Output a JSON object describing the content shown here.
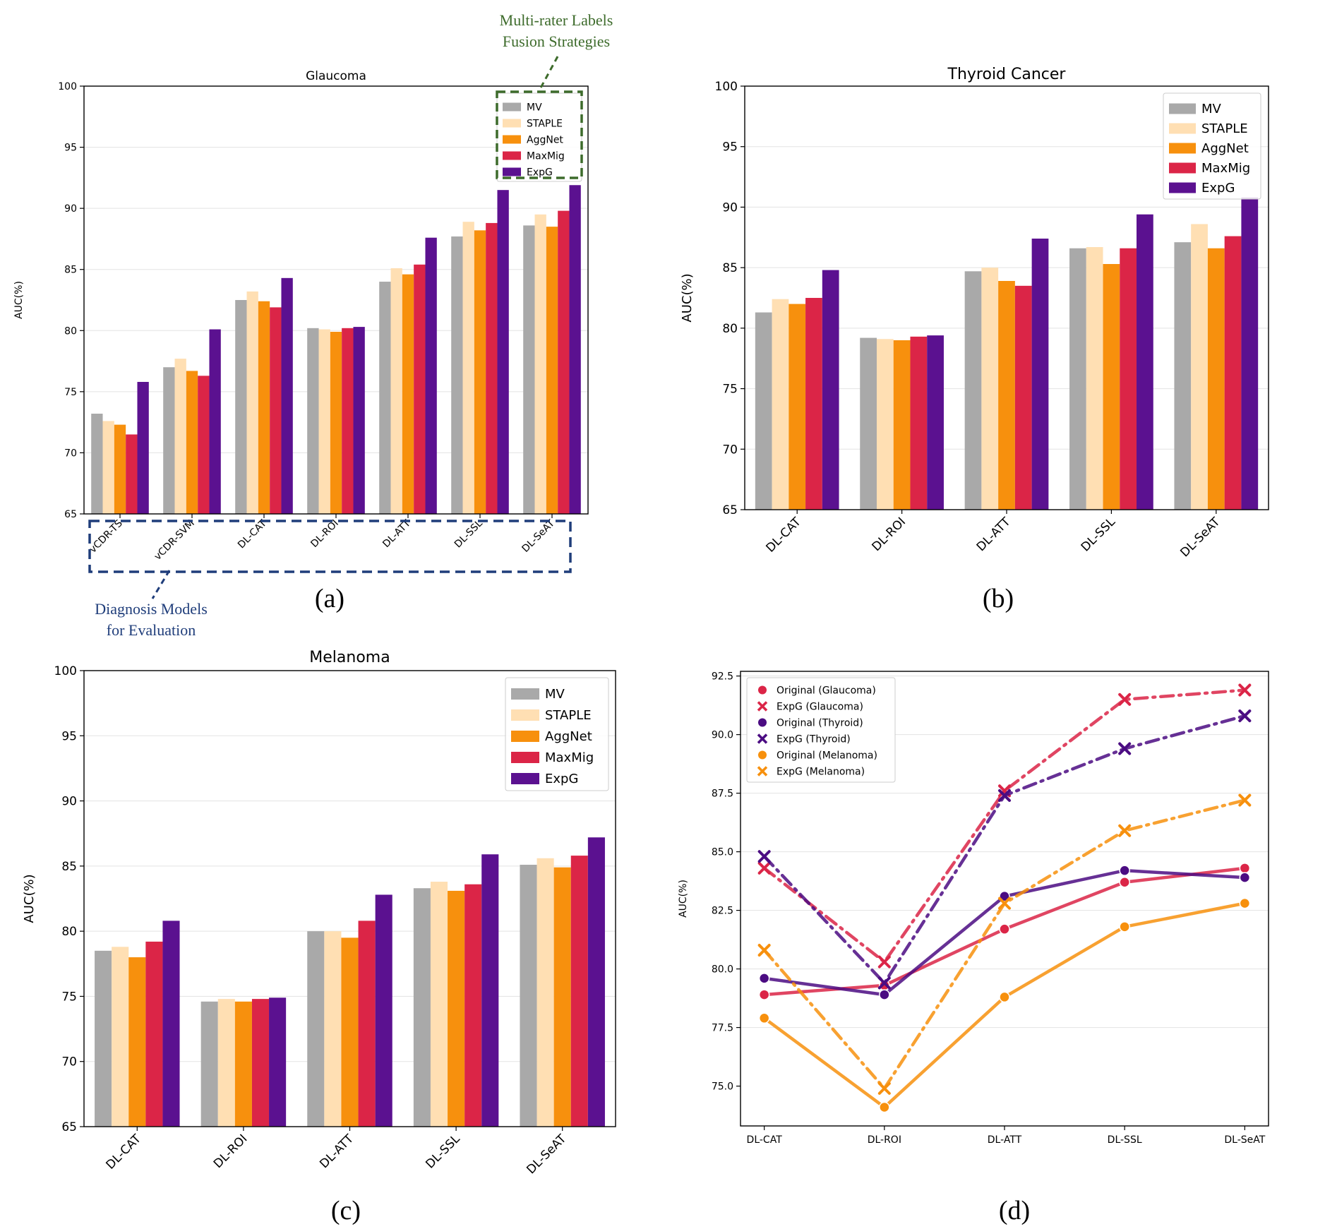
{
  "colors": {
    "MV": "#a9a9a9",
    "STAPLE": "#ffdfb3",
    "AggNet": "#f7900d",
    "MaxMig": "#db2547",
    "ExpG": "#5b1190",
    "annot_green": "#3d6b2b",
    "annot_blue": "#1f3d7a",
    "glaucoma_line": "#db2547",
    "thyroid_line": "#4b0c82",
    "melanoma_line": "#f7900d"
  },
  "panel_labels": {
    "a": "(a)",
    "b": "(b)",
    "c": "(c)",
    "d": "(d)"
  },
  "annotations": {
    "fusion_line1": "Multi-rater Labels",
    "fusion_line2": "Fusion Strategies",
    "models_line1": "Diagnosis Models",
    "models_line2": "for Evaluation"
  },
  "chart_data": [
    {
      "type": "bar",
      "title": "Glaucoma",
      "ylabel": "AUC(%)",
      "ylim": [
        65,
        100
      ],
      "yticks": [
        "65",
        "70",
        "75",
        "80",
        "85",
        "90",
        "95",
        "100"
      ],
      "categories": [
        "vCDR-TS",
        "vCDR-SVM",
        "DL-CAT",
        "DL-ROI",
        "DL-ATT",
        "DL-SSL",
        "DL-SeAT"
      ],
      "legend_position": "top-right",
      "series": [
        {
          "name": "MV",
          "values": [
            73.2,
            77.0,
            82.5,
            80.2,
            84.0,
            87.7,
            88.6
          ]
        },
        {
          "name": "STAPLE",
          "values": [
            72.6,
            77.7,
            83.2,
            80.1,
            85.1,
            88.9,
            89.5
          ]
        },
        {
          "name": "AggNet",
          "values": [
            72.3,
            76.7,
            82.4,
            79.9,
            84.6,
            88.2,
            88.5
          ]
        },
        {
          "name": "MaxMig",
          "values": [
            71.5,
            76.3,
            81.9,
            80.2,
            85.4,
            88.8,
            89.8
          ]
        },
        {
          "name": "ExpG",
          "values": [
            75.8,
            80.1,
            84.3,
            80.3,
            87.6,
            91.5,
            91.9
          ]
        }
      ]
    },
    {
      "type": "bar",
      "title": "Thyroid Cancer",
      "ylabel": "AUC(%)",
      "ylim": [
        65,
        100
      ],
      "yticks": [
        "65",
        "70",
        "75",
        "80",
        "85",
        "90",
        "95",
        "100"
      ],
      "categories": [
        "DL-CAT",
        "DL-ROI",
        "DL-ATT",
        "DL-SSL",
        "DL-SeAT"
      ],
      "legend_position": "top-right",
      "series": [
        {
          "name": "MV",
          "values": [
            81.3,
            79.2,
            84.7,
            86.6,
            87.1
          ]
        },
        {
          "name": "STAPLE",
          "values": [
            82.4,
            79.1,
            85.0,
            86.7,
            88.6
          ]
        },
        {
          "name": "AggNet",
          "values": [
            82.0,
            79.0,
            83.9,
            85.3,
            86.6
          ]
        },
        {
          "name": "MaxMig",
          "values": [
            82.5,
            79.3,
            83.5,
            86.6,
            87.6
          ]
        },
        {
          "name": "ExpG",
          "values": [
            84.8,
            79.4,
            87.4,
            89.4,
            90.8
          ]
        }
      ]
    },
    {
      "type": "bar",
      "title": "Melanoma",
      "ylabel": "AUC(%)",
      "ylim": [
        65,
        100
      ],
      "yticks": [
        "65",
        "70",
        "75",
        "80",
        "85",
        "90",
        "95",
        "100"
      ],
      "categories": [
        "DL-CAT",
        "DL-ROI",
        "DL-ATT",
        "DL-SSL",
        "DL-SeAT"
      ],
      "legend_position": "top-right",
      "series": [
        {
          "name": "MV",
          "values": [
            78.5,
            74.6,
            80.0,
            83.3,
            85.1
          ]
        },
        {
          "name": "STAPLE",
          "values": [
            78.8,
            74.8,
            80.0,
            83.8,
            85.6
          ]
        },
        {
          "name": "AggNet",
          "values": [
            78.0,
            74.6,
            79.5,
            83.1,
            84.9
          ]
        },
        {
          "name": "MaxMig",
          "values": [
            79.2,
            74.8,
            80.8,
            83.6,
            85.8
          ]
        },
        {
          "name": "ExpG",
          "values": [
            80.8,
            74.9,
            82.8,
            85.9,
            87.2
          ]
        }
      ]
    },
    {
      "type": "line",
      "title": "",
      "ylabel": "AUC(%)",
      "ylim": [
        73.3,
        92.7
      ],
      "yticks": [
        "75.0",
        "77.5",
        "80.0",
        "82.5",
        "85.0",
        "87.5",
        "90.0",
        "92.5"
      ],
      "categories": [
        "DL-CAT",
        "DL-ROI",
        "DL-ATT",
        "DL-SSL",
        "DL-SeAT"
      ],
      "legend_position": "top-left",
      "series": [
        {
          "name": "Original (Glaucoma)",
          "values": [
            78.9,
            79.3,
            81.7,
            83.7,
            84.3
          ],
          "style": "solid",
          "marker": "circle",
          "color_key": "glaucoma_line"
        },
        {
          "name": "ExpG (Glaucoma)",
          "values": [
            84.3,
            80.3,
            87.6,
            91.5,
            91.9
          ],
          "style": "dashdot",
          "marker": "x",
          "color_key": "glaucoma_line"
        },
        {
          "name": "Original (Thyroid)",
          "values": [
            79.6,
            78.9,
            83.1,
            84.2,
            83.9
          ],
          "style": "solid",
          "marker": "circle",
          "color_key": "thyroid_line"
        },
        {
          "name": "ExpG (Thyroid)",
          "values": [
            84.8,
            79.4,
            87.4,
            89.4,
            90.8
          ],
          "style": "dashdot",
          "marker": "x",
          "color_key": "thyroid_line"
        },
        {
          "name": "Original (Melanoma)",
          "values": [
            77.9,
            74.1,
            78.8,
            81.8,
            82.8
          ],
          "style": "solid",
          "marker": "circle",
          "color_key": "melanoma_line"
        },
        {
          "name": "ExpG (Melanoma)",
          "values": [
            80.8,
            74.9,
            82.8,
            85.9,
            87.2
          ],
          "style": "dashdot",
          "marker": "x",
          "color_key": "melanoma_line"
        }
      ]
    }
  ]
}
